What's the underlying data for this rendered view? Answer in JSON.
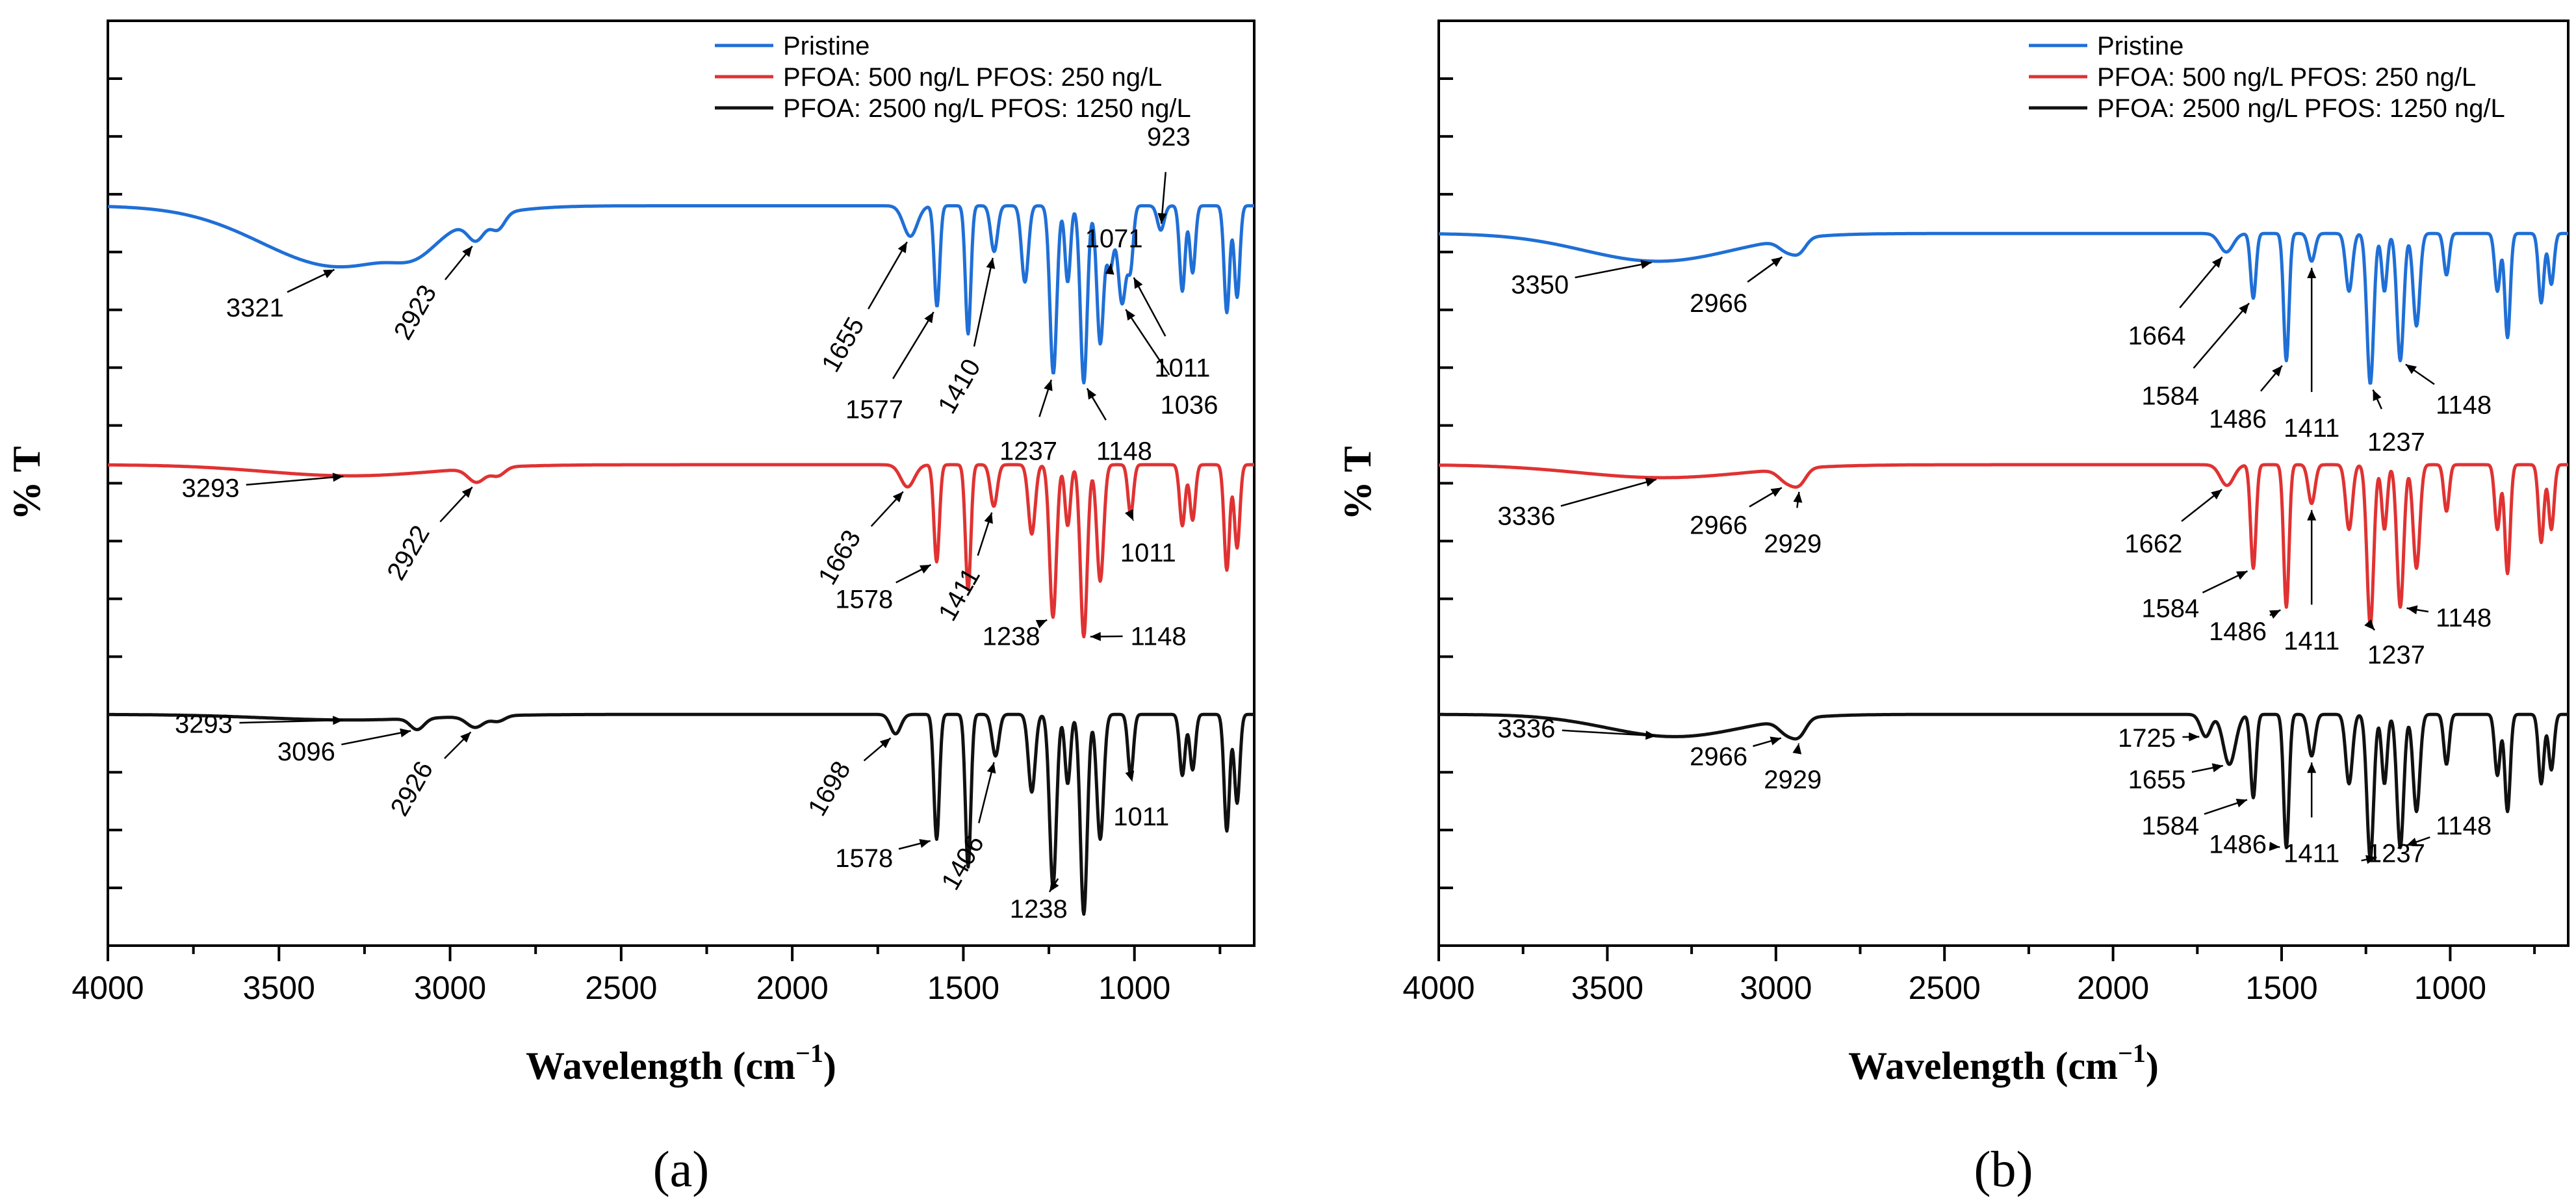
{
  "chart_data": [
    {
      "type": "line",
      "panel_label": "(a)",
      "xlabel": "Wavelength (cm",
      "xlabel_sup": "−1",
      "xlabel_close": ")",
      "ylabel": "% T",
      "xlim": [
        4000,
        650
      ],
      "xticks": [
        4000,
        3500,
        3000,
        2500,
        2000,
        1500,
        1000
      ],
      "xtick_labels": [
        "4000",
        "3500",
        "3000",
        "2500",
        "2000",
        "1500",
        "1000"
      ],
      "legend_position": "top-right",
      "series": [
        {
          "name": "Pristine",
          "color": "#1f6fd6",
          "baseline": 0.8,
          "depth": 0.33,
          "peaks": [
            [
              3321,
              0.2,
              230
            ],
            [
              2923,
              0.07,
              25
            ],
            [
              2860,
              0.05,
              20
            ],
            [
              3100,
              0.05,
              60
            ],
            [
              1655,
              0.1,
              20
            ],
            [
              1577,
              0.33,
              8
            ],
            [
              1486,
              0.42,
              8
            ],
            [
              1410,
              0.15,
              10
            ],
            [
              1320,
              0.25,
              10
            ],
            [
              1237,
              0.55,
              10
            ],
            [
              1195,
              0.25,
              8
            ],
            [
              1148,
              0.58,
              10
            ],
            [
              1100,
              0.45,
              10
            ],
            [
              1071,
              0.2,
              10
            ],
            [
              1036,
              0.32,
              12
            ],
            [
              1011,
              0.18,
              8
            ],
            [
              923,
              0.08,
              10
            ],
            [
              860,
              0.28,
              8
            ],
            [
              830,
              0.22,
              8
            ],
            [
              730,
              0.35,
              8
            ],
            [
              700,
              0.3,
              8
            ]
          ]
        },
        {
          "name": "PFOA: 500 ng/L PFOS: 250 ng/L",
          "color": "#e03232",
          "baseline": 0.52,
          "depth": 0.3,
          "peaks": [
            [
              3293,
              0.04,
              250
            ],
            [
              2922,
              0.05,
              25
            ],
            [
              2860,
              0.03,
              20
            ],
            [
              1663,
              0.08,
              20
            ],
            [
              1578,
              0.35,
              8
            ],
            [
              1486,
              0.45,
              8
            ],
            [
              1411,
              0.15,
              10
            ],
            [
              1300,
              0.25,
              10
            ],
            [
              1238,
              0.55,
              10
            ],
            [
              1195,
              0.22,
              8
            ],
            [
              1148,
              0.62,
              10
            ],
            [
              1100,
              0.42,
              10
            ],
            [
              1011,
              0.18,
              8
            ],
            [
              860,
              0.22,
              8
            ],
            [
              830,
              0.2,
              8
            ],
            [
              730,
              0.38,
              8
            ],
            [
              700,
              0.3,
              8
            ]
          ]
        },
        {
          "name": "PFOA: 2500 ng/L PFOS: 1250 ng/L",
          "color": "#111111",
          "baseline": 0.25,
          "depth": 0.3,
          "peaks": [
            [
              3293,
              0.02,
              250
            ],
            [
              3096,
              0.04,
              20
            ],
            [
              2926,
              0.04,
              25
            ],
            [
              2860,
              0.02,
              20
            ],
            [
              1698,
              0.07,
              15
            ],
            [
              1578,
              0.45,
              8
            ],
            [
              1486,
              0.55,
              8
            ],
            [
              1406,
              0.15,
              10
            ],
            [
              1300,
              0.28,
              10
            ],
            [
              1238,
              0.62,
              10
            ],
            [
              1195,
              0.25,
              8
            ],
            [
              1148,
              0.72,
              10
            ],
            [
              1100,
              0.45,
              10
            ],
            [
              1011,
              0.22,
              8
            ],
            [
              860,
              0.22,
              8
            ],
            [
              830,
              0.2,
              8
            ],
            [
              730,
              0.42,
              8
            ],
            [
              700,
              0.32,
              8
            ]
          ]
        }
      ],
      "annotations": [
        {
          "text": "3321",
          "x": 3321,
          "series": 0,
          "lx": 3570,
          "ly": 0.69,
          "rot": 0
        },
        {
          "text": "2923",
          "x": 2923,
          "series": 0,
          "lx": 3080,
          "ly": 0.69,
          "rot": -60
        },
        {
          "text": "1655",
          "x": 1655,
          "series": 0,
          "lx": 1830,
          "ly": 0.655,
          "rot": -60
        },
        {
          "text": "1577",
          "x": 1577,
          "series": 0,
          "lx": 1760,
          "ly": 0.58,
          "rot": 0
        },
        {
          "text": "1410",
          "x": 1410,
          "series": 0,
          "lx": 1490,
          "ly": 0.61,
          "rot": -60
        },
        {
          "text": "1237",
          "x": 1237,
          "series": 0,
          "lx": 1310,
          "ly": 0.535,
          "rot": 0
        },
        {
          "text": "1148",
          "x": 1148,
          "series": 0,
          "lx": 1030,
          "ly": 0.535,
          "rot": 0
        },
        {
          "text": "1071",
          "x": 1071,
          "series": 0,
          "lx": 1060,
          "ly": 0.765,
          "rot": 0
        },
        {
          "text": "923",
          "x": 923,
          "series": 0,
          "lx": 900,
          "ly": 0.875,
          "rot": 0
        },
        {
          "text": "1011",
          "x": 1011,
          "series": 0,
          "lx": 860,
          "ly": 0.625,
          "rot": 0
        },
        {
          "text": "1036",
          "x": 1036,
          "series": 0,
          "lx": 840,
          "ly": 0.585,
          "rot": 0
        },
        {
          "text": "3293",
          "x": 3293,
          "series": 1,
          "lx": 3700,
          "ly": 0.495,
          "rot": 0
        },
        {
          "text": "2922",
          "x": 2922,
          "series": 1,
          "lx": 3100,
          "ly": 0.43,
          "rot": -60
        },
        {
          "text": "1663",
          "x": 1663,
          "series": 1,
          "lx": 1840,
          "ly": 0.425,
          "rot": -60
        },
        {
          "text": "1578",
          "x": 1578,
          "series": 1,
          "lx": 1790,
          "ly": 0.375,
          "rot": 0
        },
        {
          "text": "1411",
          "x": 1411,
          "series": 1,
          "lx": 1490,
          "ly": 0.385,
          "rot": -60
        },
        {
          "text": "1238",
          "x": 1238,
          "series": 1,
          "lx": 1360,
          "ly": 0.335,
          "rot": 0
        },
        {
          "text": "1148",
          "x": 1148,
          "series": 1,
          "lx": 930,
          "ly": 0.335,
          "rot": 0
        },
        {
          "text": "1011",
          "x": 1011,
          "series": 1,
          "lx": 960,
          "ly": 0.425,
          "rot": 0
        },
        {
          "text": "3293",
          "x": 3293,
          "series": 2,
          "lx": 3720,
          "ly": 0.24,
          "rot": 0
        },
        {
          "text": "3096",
          "x": 3096,
          "series": 2,
          "lx": 3420,
          "ly": 0.21,
          "rot": 0
        },
        {
          "text": "2926",
          "x": 2926,
          "series": 2,
          "lx": 3090,
          "ly": 0.175,
          "rot": -60
        },
        {
          "text": "1698",
          "x": 1698,
          "series": 2,
          "lx": 1870,
          "ly": 0.175,
          "rot": -60
        },
        {
          "text": "1578",
          "x": 1578,
          "series": 2,
          "lx": 1790,
          "ly": 0.095,
          "rot": 0
        },
        {
          "text": "1406",
          "x": 1406,
          "series": 2,
          "lx": 1480,
          "ly": 0.095,
          "rot": -60
        },
        {
          "text": "1238",
          "x": 1238,
          "series": 2,
          "lx": 1280,
          "ly": 0.04,
          "rot": 0
        },
        {
          "text": "1011",
          "x": 1011,
          "series": 2,
          "lx": 980,
          "ly": 0.14,
          "rot": 0
        }
      ]
    },
    {
      "type": "line",
      "panel_label": "(b)",
      "xlabel": "Wavelength (cm",
      "xlabel_sup": "−1",
      "xlabel_close": ")",
      "ylabel": "% T",
      "xlim": [
        4000,
        650
      ],
      "xticks": [
        4000,
        3500,
        3000,
        2500,
        2000,
        1500,
        1000
      ],
      "xtick_labels": [
        "4000",
        "3500",
        "3000",
        "2500",
        "2000",
        "1500",
        "1000"
      ],
      "legend_position": "top-right",
      "series": [
        {
          "name": "Pristine",
          "color": "#1f6fd6",
          "baseline": 0.77,
          "depth": 0.25,
          "peaks": [
            [
              3350,
              0.12,
              220
            ],
            [
              2966,
              0.05,
              25
            ],
            [
              2929,
              0.05,
              20
            ],
            [
              1664,
              0.08,
              20
            ],
            [
              1584,
              0.28,
              8
            ],
            [
              1486,
              0.55,
              8
            ],
            [
              1411,
              0.12,
              10
            ],
            [
              1300,
              0.25,
              10
            ],
            [
              1237,
              0.65,
              10
            ],
            [
              1195,
              0.25,
              8
            ],
            [
              1148,
              0.55,
              10
            ],
            [
              1100,
              0.4,
              10
            ],
            [
              1011,
              0.18,
              8
            ],
            [
              860,
              0.25,
              8
            ],
            [
              830,
              0.45,
              8
            ],
            [
              730,
              0.3,
              8
            ],
            [
              700,
              0.22,
              8
            ]
          ]
        },
        {
          "name": "PFOA: 500 ng/L PFOS: 250 ng/L",
          "color": "#e03232",
          "baseline": 0.52,
          "depth": 0.28,
          "peaks": [
            [
              3336,
              0.05,
              250
            ],
            [
              2966,
              0.05,
              25
            ],
            [
              2929,
              0.05,
              20
            ],
            [
              1662,
              0.08,
              20
            ],
            [
              1584,
              0.4,
              8
            ],
            [
              1486,
              0.55,
              8
            ],
            [
              1411,
              0.15,
              10
            ],
            [
              1300,
              0.25,
              10
            ],
            [
              1237,
              0.62,
              10
            ],
            [
              1195,
              0.25,
              8
            ],
            [
              1148,
              0.55,
              10
            ],
            [
              1100,
              0.4,
              10
            ],
            [
              1011,
              0.18,
              8
            ],
            [
              860,
              0.25,
              8
            ],
            [
              830,
              0.42,
              8
            ],
            [
              730,
              0.3,
              8
            ],
            [
              700,
              0.25,
              8
            ]
          ]
        },
        {
          "name": "PFOA: 2500 ng/L PFOS: 1250 ng/L",
          "color": "#111111",
          "baseline": 0.25,
          "depth": 0.3,
          "peaks": [
            [
              3300,
              0.08,
              200
            ],
            [
              2966,
              0.05,
              25
            ],
            [
              2929,
              0.05,
              20
            ],
            [
              1725,
              0.08,
              15
            ],
            [
              1655,
              0.18,
              18
            ],
            [
              1584,
              0.3,
              8
            ],
            [
              1486,
              0.48,
              8
            ],
            [
              1411,
              0.15,
              10
            ],
            [
              1300,
              0.25,
              10
            ],
            [
              1237,
              0.52,
              10
            ],
            [
              1195,
              0.25,
              8
            ],
            [
              1148,
              0.48,
              10
            ],
            [
              1100,
              0.35,
              10
            ],
            [
              1011,
              0.18,
              8
            ],
            [
              860,
              0.22,
              8
            ],
            [
              830,
              0.35,
              8
            ],
            [
              730,
              0.25,
              8
            ],
            [
              700,
              0.2,
              8
            ]
          ]
        }
      ],
      "annotations": [
        {
          "text": "3350",
          "x": 3350,
          "series": 0,
          "lx": 3700,
          "ly": 0.715,
          "rot": 0
        },
        {
          "text": "2966",
          "x": 2966,
          "series": 0,
          "lx": 3170,
          "ly": 0.695,
          "rot": 0
        },
        {
          "text": "1664",
          "x": 1664,
          "series": 0,
          "lx": 1870,
          "ly": 0.66,
          "rot": 0
        },
        {
          "text": "1584",
          "x": 1584,
          "series": 0,
          "lx": 1830,
          "ly": 0.595,
          "rot": 0
        },
        {
          "text": "1486",
          "x": 1486,
          "series": 0,
          "lx": 1630,
          "ly": 0.57,
          "rot": 0
        },
        {
          "text": "1411",
          "x": 1411,
          "series": 0,
          "lx": 1411,
          "ly": 0.56,
          "rot": 0
        },
        {
          "text": "1237",
          "x": 1237,
          "series": 0,
          "lx": 1160,
          "ly": 0.545,
          "rot": 0
        },
        {
          "text": "1148",
          "x": 1148,
          "series": 0,
          "lx": 960,
          "ly": 0.585,
          "rot": 0
        },
        {
          "text": "3336",
          "x": 3336,
          "series": 1,
          "lx": 3740,
          "ly": 0.465,
          "rot": 0
        },
        {
          "text": "2966",
          "x": 2966,
          "series": 1,
          "lx": 3170,
          "ly": 0.455,
          "rot": 0
        },
        {
          "text": "2929",
          "x": 2929,
          "series": 1,
          "lx": 2950,
          "ly": 0.435,
          "rot": 0
        },
        {
          "text": "1662",
          "x": 1662,
          "series": 1,
          "lx": 1880,
          "ly": 0.435,
          "rot": 0
        },
        {
          "text": "1584",
          "x": 1584,
          "series": 1,
          "lx": 1830,
          "ly": 0.365,
          "rot": 0
        },
        {
          "text": "1486",
          "x": 1486,
          "series": 1,
          "lx": 1630,
          "ly": 0.34,
          "rot": 0
        },
        {
          "text": "1411",
          "x": 1411,
          "series": 1,
          "lx": 1411,
          "ly": 0.33,
          "rot": 0
        },
        {
          "text": "1237",
          "x": 1237,
          "series": 1,
          "lx": 1160,
          "ly": 0.315,
          "rot": 0
        },
        {
          "text": "1148",
          "x": 1148,
          "series": 1,
          "lx": 960,
          "ly": 0.355,
          "rot": 0
        },
        {
          "text": "3336",
          "x": 3336,
          "series": 2,
          "lx": 3740,
          "ly": 0.235,
          "rot": 0
        },
        {
          "text": "2966",
          "x": 2966,
          "series": 2,
          "lx": 3170,
          "ly": 0.205,
          "rot": 0
        },
        {
          "text": "2929",
          "x": 2929,
          "series": 2,
          "lx": 2950,
          "ly": 0.18,
          "rot": 0
        },
        {
          "text": "1725",
          "x": 1725,
          "series": 2,
          "lx": 1900,
          "ly": 0.225,
          "rot": 0
        },
        {
          "text": "1655",
          "x": 1655,
          "series": 2,
          "lx": 1870,
          "ly": 0.18,
          "rot": 0
        },
        {
          "text": "1584",
          "x": 1584,
          "series": 2,
          "lx": 1830,
          "ly": 0.13,
          "rot": 0
        },
        {
          "text": "1486",
          "x": 1486,
          "series": 2,
          "lx": 1630,
          "ly": 0.11,
          "rot": 0
        },
        {
          "text": "1411",
          "x": 1411,
          "series": 2,
          "lx": 1411,
          "ly": 0.1,
          "rot": 0
        },
        {
          "text": "1237",
          "x": 1237,
          "series": 2,
          "lx": 1160,
          "ly": 0.1,
          "rot": 0
        },
        {
          "text": "1148",
          "x": 1148,
          "series": 2,
          "lx": 960,
          "ly": 0.13,
          "rot": 0
        }
      ]
    }
  ]
}
